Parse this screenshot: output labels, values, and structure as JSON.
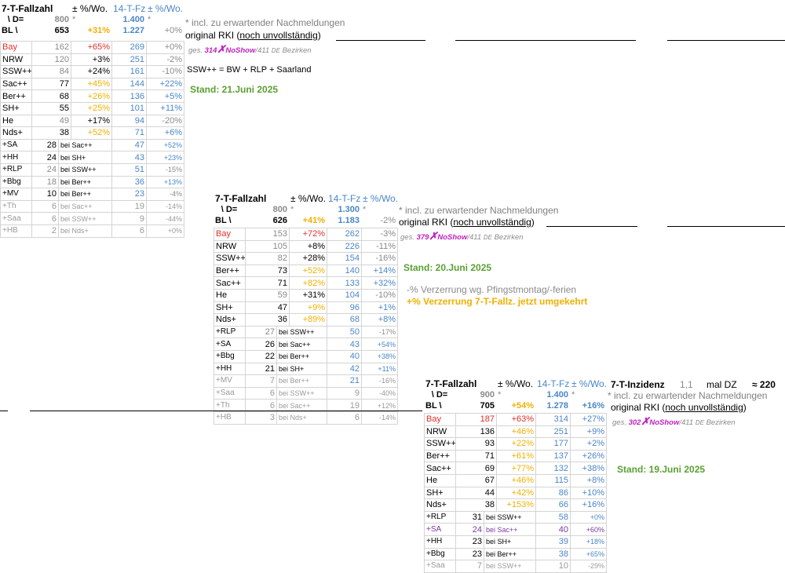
{
  "tables": [
    {
      "header": {
        "title": "7-T-Fallzahl",
        "pm_label": "± %/Wo.",
        "fz14": "14-T-Fz",
        "pm2_label": "± %/Wo.",
        "d_label": "\\ D=",
        "d_val": "800",
        "d_star": "*",
        "fz_ref": "1.400",
        "fz_ref_star": "*",
        "bl_label": "BL \\",
        "bl_val": "653",
        "bl_pct": "+31%",
        "bl_fz": "1.227",
        "bl_fz_pct": "+0%"
      },
      "rows": [
        {
          "n": "Bay",
          "v": "162",
          "p": "+65%",
          "f": "269",
          "q": "+0%"
        },
        {
          "n": "NRW",
          "v": "120",
          "p": "+3%",
          "f": "251",
          "q": "-2%"
        },
        {
          "n": "SSW++",
          "v": "84",
          "p": "+24%",
          "f": "161",
          "q": "-10%"
        },
        {
          "n": "Sac++",
          "v": "77",
          "p": "+45%",
          "f": "144",
          "q": "+22%"
        },
        {
          "n": "Ber++",
          "v": "68",
          "p": "+26%",
          "f": "136",
          "q": "+5%"
        },
        {
          "n": "SH+",
          "v": "55",
          "p": "+25%",
          "f": "101",
          "q": "+11%"
        },
        {
          "n": "He",
          "v": "49",
          "p": "+17%",
          "f": "94",
          "q": "-20%"
        },
        {
          "n": "Nds+",
          "v": "38",
          "p": "+52%",
          "f": "71",
          "q": "+6%"
        }
      ],
      "small": [
        {
          "n": "+SA",
          "v": "28",
          "b": "bei Sac++",
          "f": "47",
          "q": "+52%"
        },
        {
          "n": "+HH",
          "v": "24",
          "b": "bei SH+",
          "f": "43",
          "q": "+23%"
        },
        {
          "n": "+RLP",
          "v": "24",
          "b": "bei SSW++",
          "f": "51",
          "q": "-15%"
        },
        {
          "n": "+Bbg",
          "v": "18",
          "b": "bei Ber++",
          "f": "36",
          "q": "+13%"
        },
        {
          "n": "+MV",
          "v": "10",
          "b": "bei Ber++",
          "f": "23",
          "q": "-4%"
        },
        {
          "n": "+Th",
          "v": "6",
          "b": "bei Sac++",
          "f": "19",
          "q": "-14%"
        },
        {
          "n": "+Saa",
          "v": "6",
          "b": "bei SSW++",
          "f": "9",
          "q": "-44%"
        },
        {
          "n": "+HB",
          "v": "2",
          "b": "bei Nds+",
          "f": "6",
          "q": "+0%"
        }
      ],
      "note_star": "* incl. zu erwartender Nachmeldungen",
      "orig_prefix": "original RKI (",
      "orig_underlined": "noch unvollständig",
      "orig_suffix": ")",
      "ges_prefix": "ges.",
      "ges_num": "314",
      "ges_noshow": "NoShow",
      "ges_suffix": "/411",
      "ges_de": "DE",
      "ges_bez": "Bezirken",
      "ssw_note": "SSW++  =  BW + RLP + Saarland",
      "stand": "Stand: 21.Juni 2025"
    },
    {
      "header": {
        "title": "7-T-Fallzahl",
        "pm_label": "± %/Wo.",
        "fz14": "14-T-Fz",
        "pm2_label": "± %/Wo.",
        "d_label": "\\ D=",
        "d_val": "800",
        "d_star": "*",
        "fz_ref": "1.300",
        "fz_ref_star": "*",
        "bl_label": "BL \\",
        "bl_val": "626",
        "bl_pct": "+41%",
        "bl_fz": "1.183",
        "bl_fz_pct": "-2%"
      },
      "rows": [
        {
          "n": "Bay",
          "v": "153",
          "p": "+72%",
          "f": "262",
          "q": "-3%"
        },
        {
          "n": "NRW",
          "v": "105",
          "p": "+8%",
          "f": "226",
          "q": "-11%"
        },
        {
          "n": "SSW++",
          "v": "82",
          "p": "+28%",
          "f": "154",
          "q": "-16%"
        },
        {
          "n": "Ber++",
          "v": "73",
          "p": "+52%",
          "f": "140",
          "q": "+14%"
        },
        {
          "n": "Sac++",
          "v": "71",
          "p": "+82%",
          "f": "133",
          "q": "+32%"
        },
        {
          "n": "He",
          "v": "59",
          "p": "+31%",
          "f": "104",
          "q": "-10%"
        },
        {
          "n": "SH+",
          "v": "47",
          "p": "+9%",
          "f": "96",
          "q": "+1%"
        },
        {
          "n": "Nds+",
          "v": "36",
          "p": "+89%",
          "f": "68",
          "q": "+8%"
        }
      ],
      "small": [
        {
          "n": "+RLP",
          "v": "27",
          "b": "bei SSW++",
          "f": "50",
          "q": "-17%"
        },
        {
          "n": "+SA",
          "v": "26",
          "b": "bei Sac++",
          "f": "43",
          "q": "+54%"
        },
        {
          "n": "+Bbg",
          "v": "22",
          "b": "bei Ber++",
          "f": "40",
          "q": "+38%"
        },
        {
          "n": "+HH",
          "v": "21",
          "b": "bei SH+",
          "f": "42",
          "q": "+11%"
        },
        {
          "n": "+MV",
          "v": "7",
          "b": "bei Ber++",
          "f": "21",
          "q": "-16%"
        },
        {
          "n": "+Saa",
          "v": "6",
          "b": "bei SSW++",
          "f": "9",
          "q": "-40%"
        },
        {
          "n": "+Th",
          "v": "6",
          "b": "bei Sac++",
          "f": "19",
          "q": "+12%"
        },
        {
          "n": "+HB",
          "v": "3",
          "b": "bei Nds+",
          "f": "6",
          "q": "-14%"
        }
      ],
      "note_star": "* incl. zu erwartender Nachmeldungen",
      "orig_prefix": "original RKI (",
      "orig_underlined": "noch unvollständig",
      "orig_suffix": ")",
      "ges_prefix": "ges.",
      "ges_num": "379",
      "ges_noshow": "NoShow",
      "ges_suffix": "/411",
      "ges_de": "DE",
      "ges_bez": "Bezirken",
      "stand": "Stand: 20.Juni 2025",
      "verz1": "-% Verzerrung wg. Pfingstmontag/-ferien",
      "verz2": "+% Verzerrung 7-T-Fallz. jetzt umgekehrt"
    },
    {
      "header": {
        "title": "7-T-Fallzahl",
        "pm_label": "± %/Wo.",
        "fz14": "14-T-Fz",
        "pm2_label": "± %/Wo.",
        "d_label": "\\ D=",
        "d_val": "900",
        "d_star": "*",
        "fz_ref": "1.400",
        "fz_ref_star": "*",
        "bl_label": "BL \\",
        "bl_val": "705",
        "bl_pct": "+54%",
        "bl_fz": "1.278",
        "bl_fz_pct": "+16%"
      },
      "rows": [
        {
          "n": "Bay",
          "v": "187",
          "p": "+63%",
          "f": "314",
          "q": "+27%"
        },
        {
          "n": "NRW",
          "v": "136",
          "p": "+46%",
          "f": "251",
          "q": "+9%"
        },
        {
          "n": "SSW++",
          "v": "93",
          "p": "+22%",
          "f": "177",
          "q": "+2%"
        },
        {
          "n": "Ber++",
          "v": "71",
          "p": "+61%",
          "f": "137",
          "q": "+26%"
        },
        {
          "n": "Sac++",
          "v": "69",
          "p": "+77%",
          "f": "132",
          "q": "+38%"
        },
        {
          "n": "He",
          "v": "67",
          "p": "+46%",
          "f": "115",
          "q": "+8%"
        },
        {
          "n": "SH+",
          "v": "44",
          "p": "+42%",
          "f": "86",
          "q": "+10%"
        },
        {
          "n": "Nds+",
          "v": "38",
          "p": "+153%",
          "f": "66",
          "q": "+16%"
        }
      ],
      "small": [
        {
          "n": "+RLP",
          "v": "31",
          "b": "bei SSW++",
          "f": "58",
          "q": "+0%"
        },
        {
          "n": "+SA",
          "v": "24",
          "b": "bei Sac++",
          "f": "40",
          "q": "+60%"
        },
        {
          "n": "+HH",
          "v": "23",
          "b": "bei SH+",
          "f": "39",
          "q": "+18%"
        },
        {
          "n": "+Bbg",
          "v": "23",
          "b": "bei Ber++",
          "f": "38",
          "q": "+65%"
        },
        {
          "n": "+Saa",
          "v": "7",
          "b": "bei SSW++",
          "f": "10",
          "q": "-29%"
        }
      ],
      "inzidenz": {
        "label": "7-T-Inzidenz",
        "val": "1,1",
        "mal": "mal DZ",
        "approx": "≈ 220"
      },
      "note_star": "* incl. zu erwartender Nachmeldungen",
      "orig_prefix": "original RKI (",
      "orig_underlined": "noch unvollständig",
      "orig_suffix": ")",
      "ges_prefix": "ges.",
      "ges_num": "302",
      "ges_noshow": "NoShow",
      "ges_suffix": "/411",
      "ges_de": "DE",
      "ges_bez": "Bezirken",
      "stand": "Stand: 19.Juni 2025"
    }
  ],
  "colors": {
    "red": "#e0302b",
    "grey": "#8a8a8a",
    "blue": "#4a86c8",
    "orange": "#f0b000",
    "magenta": "#c020c0",
    "green": "#5aa032",
    "purple": "#7a3aa0"
  }
}
